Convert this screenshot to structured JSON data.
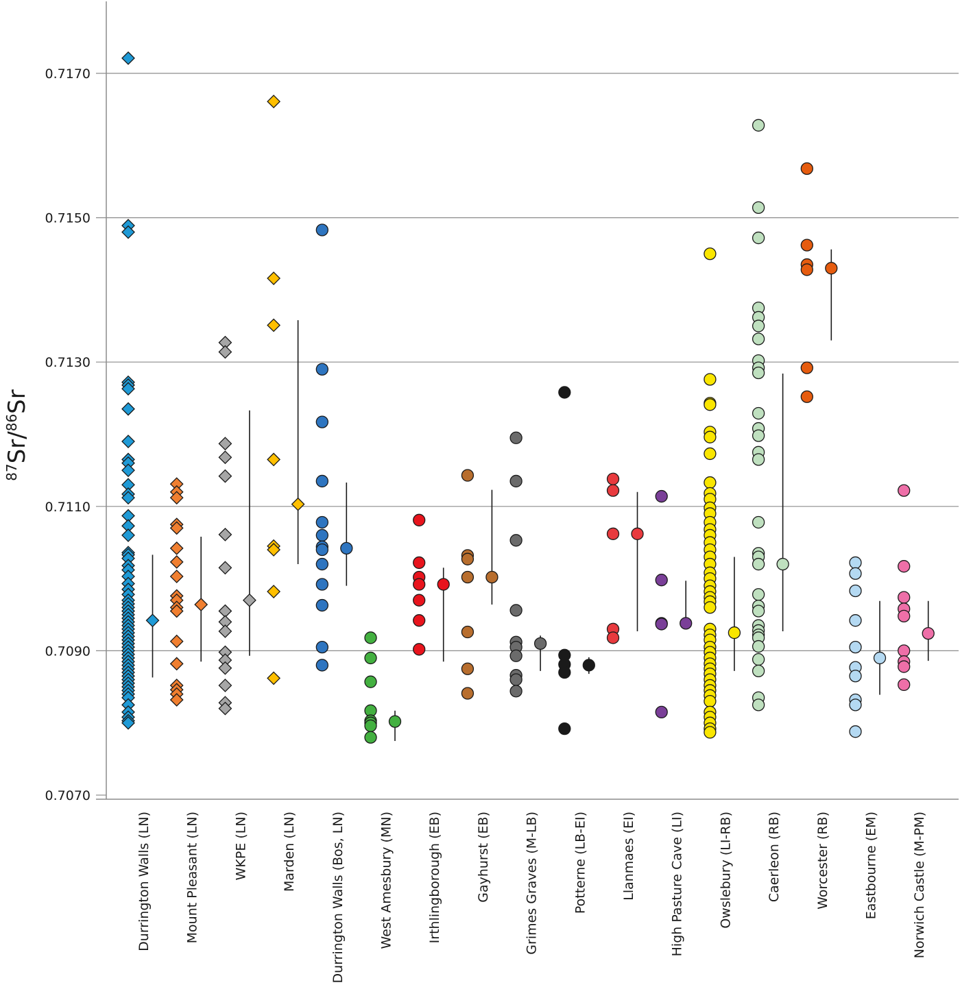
{
  "chart_data": {
    "type": "scatter",
    "title": "",
    "xlabel": "",
    "ylabel": {
      "sup1": "87",
      "base1": "Sr",
      "sep": "/",
      "sup2": "86",
      "base2": "Sr"
    },
    "ylim": [
      0.707,
      0.718
    ],
    "yticks": [
      "0.7070",
      "0.7090",
      "0.7110",
      "0.7130",
      "0.7150",
      "0.7170"
    ],
    "ytick_values": [
      0.707,
      0.709,
      0.711,
      0.713,
      0.715,
      0.717
    ],
    "grid": "horizontal",
    "legend": "none",
    "series": [
      {
        "name": "Durrington Walls (LN)",
        "marker": "diamond",
        "color": "#1f9ad6",
        "values": [
          0.71721,
          0.71489,
          0.7148,
          0.71272,
          0.71268,
          0.71263,
          0.71235,
          0.7119,
          0.71165,
          0.7116,
          0.7115,
          0.7113,
          0.71117,
          0.71112,
          0.71087,
          0.71073,
          0.7106,
          0.71036,
          0.71033,
          0.71028,
          0.71018,
          0.71012,
          0.71003,
          0.70993,
          0.70985,
          0.70978,
          0.7097,
          0.70965,
          0.7096,
          0.70955,
          0.7095,
          0.70945,
          0.7094,
          0.70935,
          0.7093,
          0.70925,
          0.7092,
          0.70915,
          0.7091,
          0.70905,
          0.709,
          0.70895,
          0.7089,
          0.70885,
          0.7088,
          0.70875,
          0.7087,
          0.70865,
          0.7086,
          0.70855,
          0.7085,
          0.70845,
          0.7084,
          0.70835,
          0.70825,
          0.70815,
          0.70808,
          0.70803,
          0.708
        ],
        "mean": 0.70942,
        "range": [
          0.70863,
          0.71033
        ]
      },
      {
        "name": "Mount Pleasant (LN)",
        "marker": "diamond",
        "color": "#f07f30",
        "values": [
          0.71131,
          0.7112,
          0.71112,
          0.71075,
          0.7107,
          0.71042,
          0.71023,
          0.71003,
          0.70976,
          0.7097,
          0.7096,
          0.70955,
          0.70913,
          0.70882,
          0.70852,
          0.70846,
          0.7084,
          0.70832
        ],
        "mean": 0.70964,
        "range": [
          0.70885,
          0.71058
        ]
      },
      {
        "name": "WKPE (LN)",
        "marker": "diamond",
        "color": "#a6a6a6",
        "values": [
          0.71327,
          0.71314,
          0.71187,
          0.71168,
          0.71142,
          0.71061,
          0.71015,
          0.70955,
          0.7094,
          0.70927,
          0.70898,
          0.70887,
          0.70876,
          0.70852,
          0.70828,
          0.7082
        ],
        "mean": 0.7097,
        "range": [
          0.70893,
          0.71233
        ]
      },
      {
        "name": "Marden (LN)",
        "marker": "diamond",
        "color": "#ffbf00",
        "values": [
          0.71661,
          0.71416,
          0.71351,
          0.71165,
          0.71045,
          0.7104,
          0.70982,
          0.70862
        ],
        "mean": 0.71103,
        "range": [
          0.7102,
          0.71358
        ]
      },
      {
        "name": "Durrington Walls (Bos, LN)",
        "marker": "circle",
        "color": "#2e75c0",
        "values": [
          0.71483,
          0.7129,
          0.71217,
          0.71135,
          0.71078,
          0.7106,
          0.71044,
          0.7104,
          0.7102,
          0.70992,
          0.70963,
          0.70905,
          0.7088
        ],
        "mean": 0.71042,
        "range": [
          0.7099,
          0.71133
        ]
      },
      {
        "name": "West Amesbury (MN)",
        "marker": "circle",
        "color": "#43b040",
        "values": [
          0.70918,
          0.7089,
          0.70857,
          0.70817,
          0.70803,
          0.708,
          0.70796,
          0.7078
        ],
        "mean": 0.70802,
        "range": [
          0.70775,
          0.70817
        ]
      },
      {
        "name": "Irthlingborough (EB)",
        "marker": "circle",
        "color": "#e8141d",
        "values": [
          0.71081,
          0.71022,
          0.71002,
          0.70992,
          0.7097,
          0.70942,
          0.70902
        ],
        "mean": 0.70992,
        "range": [
          0.70885,
          0.71015
        ]
      },
      {
        "name": "Gayhurst (EB)",
        "marker": "circle",
        "color": "#b86e2e",
        "values": [
          0.71143,
          0.71032,
          0.71027,
          0.71002,
          0.70926,
          0.70875,
          0.70841
        ],
        "mean": 0.71002,
        "range": [
          0.70964,
          0.71123
        ]
      },
      {
        "name": "Grimes Graves (M-LB)",
        "marker": "circle",
        "color": "#6b6b6b",
        "values": [
          0.71195,
          0.71135,
          0.71053,
          0.70956,
          0.70912,
          0.70905,
          0.70893,
          0.70866,
          0.7086,
          0.70844
        ],
        "mean": 0.7091,
        "range": [
          0.70872,
          0.70921
        ]
      },
      {
        "name": "Potterne (LB-EI)",
        "marker": "circle",
        "color": "#1a1a1a",
        "values": [
          0.71258,
          0.70894,
          0.70881,
          0.7087,
          0.70792
        ],
        "mean": 0.7088,
        "range": [
          0.70868,
          0.70891
        ]
      },
      {
        "name": "Llanmaes (EI)",
        "marker": "circle",
        "color": "#e83a3e",
        "values": [
          0.71138,
          0.71122,
          0.71062,
          0.7093,
          0.70918
        ],
        "mean": 0.71062,
        "range": [
          0.70927,
          0.7112
        ]
      },
      {
        "name": "High Pasture Cave (LI)",
        "marker": "circle",
        "color": "#7a3f98",
        "values": [
          0.71114,
          0.70998,
          0.70938,
          0.70937,
          0.70815
        ],
        "mean": 0.70938,
        "range": [
          0.70938,
          0.70997
        ]
      },
      {
        "name": "Owslebury (LI-RB)",
        "marker": "circle",
        "color": "#fae600",
        "values": [
          0.7145,
          0.71276,
          0.71243,
          0.71241,
          0.71203,
          0.71196,
          0.71173,
          0.71133,
          0.71118,
          0.7111,
          0.71098,
          0.7109,
          0.71078,
          0.71068,
          0.7106,
          0.7105,
          0.7104,
          0.7103,
          0.7102,
          0.71008,
          0.71,
          0.7099,
          0.70982,
          0.70974,
          0.70968,
          0.7096,
          0.7093,
          0.70922,
          0.70915,
          0.70905,
          0.70898,
          0.7089,
          0.70882,
          0.70875,
          0.70868,
          0.7086,
          0.70852,
          0.70845,
          0.70838,
          0.7083,
          0.70815,
          0.70808,
          0.708,
          0.70792,
          0.70787
        ],
        "mean": 0.70925,
        "range": [
          0.70872,
          0.7103
        ]
      },
      {
        "name": "Caerleon (RB)",
        "marker": "circle",
        "color": "#bfe0bf",
        "values": [
          0.71628,
          0.71514,
          0.71472,
          0.71375,
          0.71362,
          0.7135,
          0.71332,
          0.71302,
          0.71292,
          0.71285,
          0.71229,
          0.71208,
          0.71198,
          0.71175,
          0.71165,
          0.71078,
          0.71035,
          0.7103,
          0.7102,
          0.70978,
          0.70962,
          0.70955,
          0.70935,
          0.70928,
          0.70922,
          0.70918,
          0.70906,
          0.70888,
          0.70872,
          0.70835,
          0.70825
        ],
        "mean": 0.7102,
        "range": [
          0.70927,
          0.71284
        ]
      },
      {
        "name": "Worcester (RB)",
        "marker": "circle",
        "color": "#e65c0f",
        "values": [
          0.71568,
          0.71462,
          0.71435,
          0.71428,
          0.71292,
          0.71252
        ],
        "mean": 0.7143,
        "range": [
          0.7133,
          0.71456
        ]
      },
      {
        "name": "Eastbourne (EM)",
        "marker": "circle",
        "color": "#b4d9f2",
        "values": [
          0.71022,
          0.71007,
          0.70983,
          0.70942,
          0.70905,
          0.70877,
          0.70865,
          0.70832,
          0.70825,
          0.70788
        ],
        "mean": 0.7089,
        "range": [
          0.70839,
          0.70969
        ]
      },
      {
        "name": "Norwich Castle (M-PM)",
        "marker": "circle",
        "color": "#ee6fa8",
        "values": [
          0.71122,
          0.71017,
          0.70974,
          0.70958,
          0.70948,
          0.709,
          0.70885,
          0.70878,
          0.70853
        ],
        "mean": 0.70924,
        "range": [
          0.70886,
          0.70969
        ]
      }
    ]
  }
}
